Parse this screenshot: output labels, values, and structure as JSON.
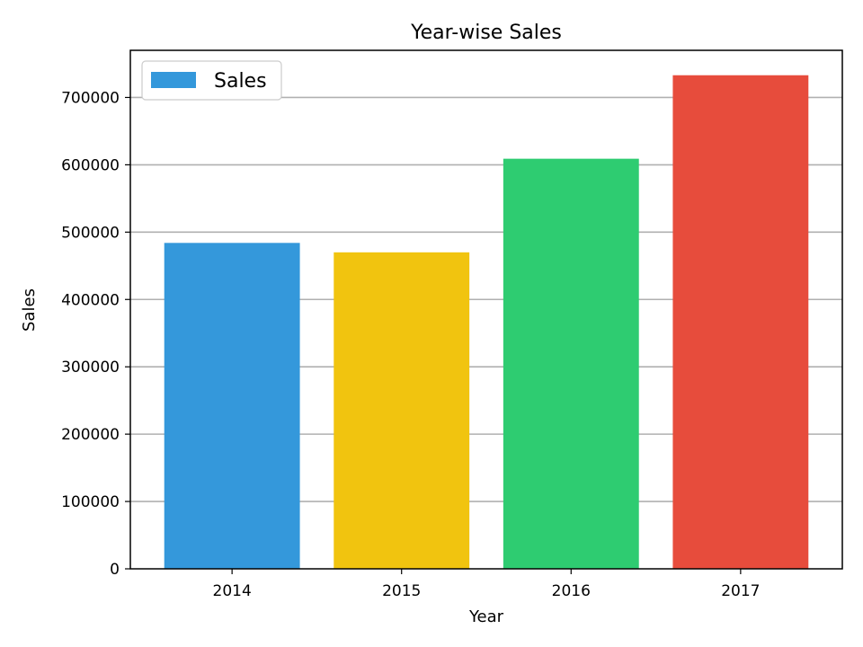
{
  "chart_data": {
    "type": "bar",
    "title": "Year-wise Sales",
    "xlabel": "Year",
    "ylabel": "Sales",
    "categories": [
      "2014",
      "2015",
      "2016",
      "2017"
    ],
    "values": [
      484000,
      470000,
      609000,
      733000
    ],
    "bar_colors": [
      "#3498db",
      "#f1c40f",
      "#2ecc71",
      "#e74c3c"
    ],
    "ylim": [
      0,
      770000
    ],
    "yticks": [
      0,
      100000,
      200000,
      300000,
      400000,
      500000,
      600000,
      700000
    ],
    "grid": {
      "y": true,
      "x": false,
      "color": "#b0b0b0"
    },
    "legend": {
      "label": "Sales",
      "color": "#3498db",
      "position": "top-left"
    }
  }
}
